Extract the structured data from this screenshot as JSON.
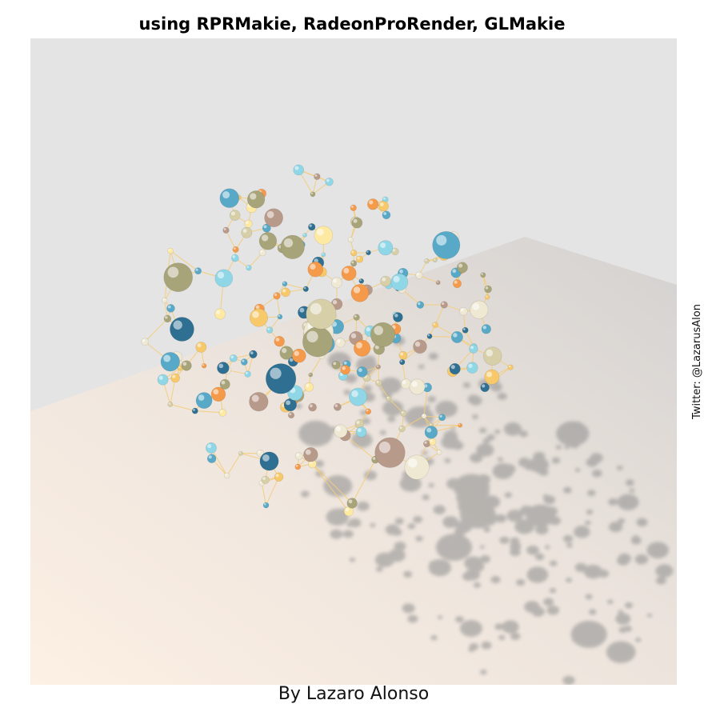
{
  "header": {
    "title": "using RPRMakie, RadeonProRender, GLMakie"
  },
  "footer": {
    "caption": "By Lazaro Alonso"
  },
  "side": {
    "label": "Twitter: @LazarusAlon"
  },
  "scene": {
    "description_colors": {
      "background": "#e4e4e4",
      "floor_far": "#dcdcdc",
      "floor_near": "#fbeee3",
      "shadow": "#8c8c8c",
      "edge": "#f4cd7a"
    },
    "node_palette": [
      "#fde9a2",
      "#f7c96a",
      "#f49a4a",
      "#8fd6e6",
      "#58a9c8",
      "#2f6f92",
      "#d6cfa8",
      "#a8a47a",
      "#efe9d4",
      "#b89a8a"
    ]
  }
}
